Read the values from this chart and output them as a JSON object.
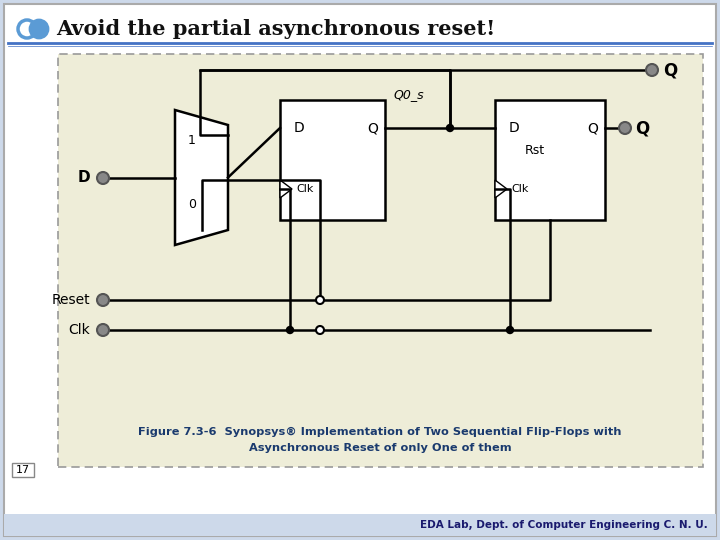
{
  "title": "Avoid the partial asynchronous reset!",
  "slide_number": "17",
  "footer": "EDA Lab, Dept. of Computer Engineering C. N. U.",
  "figure_caption_1": "Figure 7.3-6  Synopsys® Implementation of Two Sequential Flip-Flops with",
  "figure_caption_2": "Asynchronous Reset of only One of them",
  "bg_outer": "#cdd9ea",
  "bg_slide": "#ffffff",
  "bg_content": "#eeedd8",
  "title_color": "#111111",
  "footer_color": "#1a1a6e",
  "caption_color": "#1a3a6e",
  "header_line_color": "#4472c4",
  "logo_color": "#5b9bd5"
}
